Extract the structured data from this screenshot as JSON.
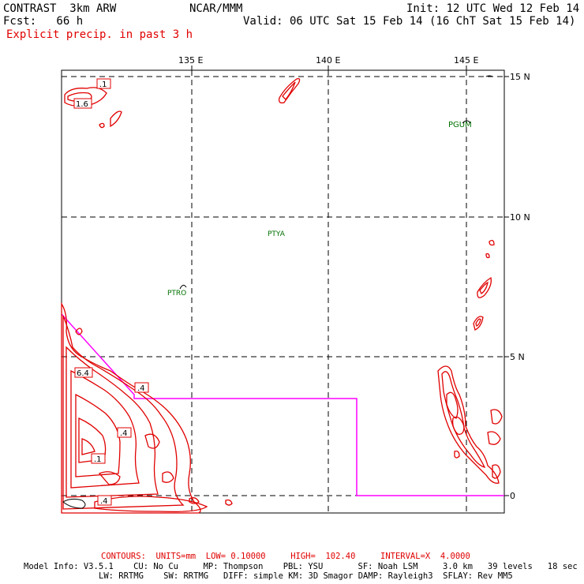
{
  "header": {
    "model": "CONTRAST  3km ARW",
    "center": "NCAR/MMM",
    "init": "Init: 12 UTC Wed 12 Feb 14",
    "fcst": "Fcst:   66 h",
    "valid": "Valid: 06 UTC Sat 15 Feb 14 (16 ChT Sat 15 Feb 14)",
    "field": "Explicit precip. in past 3 h"
  },
  "axes": {
    "lon_labels": [
      "135 E",
      "140 E",
      "145 E"
    ],
    "lat_labels": [
      "15 N",
      "10 N",
      "5 N",
      "0"
    ]
  },
  "stations": [
    {
      "id": "PGUM"
    },
    {
      "id": "PTYA"
    },
    {
      "id": "PTRO"
    }
  ],
  "contour_labels": [
    ".1",
    "1.6",
    "6.4",
    ".4",
    ".4",
    ".1",
    ".4"
  ],
  "footer": {
    "contours": "CONTOURS:  UNITS=mm  LOW= 0.10000     HIGH=  102.40     INTERVAL=X  4.0000",
    "model_info_1": "Model Info: V3.5.1    CU: No Cu     MP: Thompson    PBL: YSU       SF: Noah LSM     3.0 km   39 levels   18 sec",
    "model_info_2": "LW: RRTMG    SW: RRTMG   DIFF: simple KM: 3D Smagor DAMP: Rayleigh3  SFLAY: Rev MM5"
  },
  "colors": {
    "precip_contour": "#e00000",
    "boundary": "#ff00ff",
    "station": "#007000",
    "grid": "#000000"
  }
}
